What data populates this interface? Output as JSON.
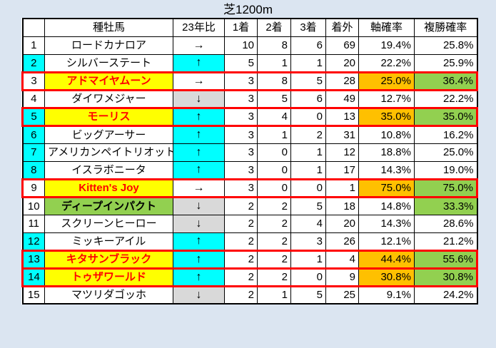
{
  "title": "芝1200m",
  "colors": {
    "page_bg": "#dbe5f1",
    "cyan": "#00ffff",
    "yellow": "#ffff00",
    "green": "#92d050",
    "gray": "#d9d9d9",
    "orange": "#ffc000",
    "red_highlight": "#ff0000",
    "grid": "#000000"
  },
  "table": {
    "headers": [
      "",
      "種牡馬",
      "23年比",
      "1着",
      "2着",
      "3着",
      "着外",
      "軸確率",
      "複勝確率"
    ],
    "rows": [
      {
        "rank": "1",
        "name": "ロードカナロア",
        "trend": "→",
        "win1": "10",
        "win2": "8",
        "win3": "6",
        "out": "69",
        "axis": "19.4%",
        "place": "25.8%",
        "rank_bg": "white",
        "name_bg": "white",
        "name_style": "normal",
        "trend_bg": "white",
        "axis_bg": "white",
        "place_bg": "white",
        "highlight": false
      },
      {
        "rank": "2",
        "name": "シルバーステート",
        "trend": "↑",
        "win1": "5",
        "win2": "1",
        "win3": "1",
        "out": "20",
        "axis": "22.2%",
        "place": "25.9%",
        "rank_bg": "cyan",
        "name_bg": "white",
        "name_style": "normal",
        "trend_bg": "cyan",
        "axis_bg": "white",
        "place_bg": "white",
        "highlight": false
      },
      {
        "rank": "3",
        "name": "アドマイヤムーン",
        "trend": "→",
        "win1": "3",
        "win2": "8",
        "win3": "5",
        "out": "28",
        "axis": "25.0%",
        "place": "36.4%",
        "rank_bg": "white",
        "name_bg": "yellow",
        "name_style": "red-bold",
        "trend_bg": "white",
        "axis_bg": "orange",
        "place_bg": "green",
        "highlight": true
      },
      {
        "rank": "4",
        "name": "ダイワメジャー",
        "trend": "↓",
        "win1": "3",
        "win2": "5",
        "win3": "6",
        "out": "49",
        "axis": "12.7%",
        "place": "22.2%",
        "rank_bg": "white",
        "name_bg": "white",
        "name_style": "normal",
        "trend_bg": "gray",
        "axis_bg": "white",
        "place_bg": "white",
        "highlight": false
      },
      {
        "rank": "5",
        "name": "モーリス",
        "trend": "↑",
        "win1": "3",
        "win2": "4",
        "win3": "0",
        "out": "13",
        "axis": "35.0%",
        "place": "35.0%",
        "rank_bg": "cyan",
        "name_bg": "yellow",
        "name_style": "red-bold",
        "trend_bg": "cyan",
        "axis_bg": "orange",
        "place_bg": "green",
        "highlight": true
      },
      {
        "rank": "6",
        "name": "ビッグアーサー",
        "trend": "↑",
        "win1": "3",
        "win2": "1",
        "win3": "2",
        "out": "31",
        "axis": "10.8%",
        "place": "16.2%",
        "rank_bg": "cyan",
        "name_bg": "white",
        "name_style": "normal",
        "trend_bg": "cyan",
        "axis_bg": "white",
        "place_bg": "white",
        "highlight": false
      },
      {
        "rank": "7",
        "name": "アメリカンペイトリオット",
        "trend": "↑",
        "win1": "3",
        "win2": "0",
        "win3": "1",
        "out": "12",
        "axis": "18.8%",
        "place": "25.0%",
        "rank_bg": "cyan",
        "name_bg": "white",
        "name_style": "normal",
        "trend_bg": "cyan",
        "axis_bg": "white",
        "place_bg": "white",
        "highlight": false
      },
      {
        "rank": "8",
        "name": "イスラボニータ",
        "trend": "↑",
        "win1": "3",
        "win2": "0",
        "win3": "1",
        "out": "17",
        "axis": "14.3%",
        "place": "19.0%",
        "rank_bg": "cyan",
        "name_bg": "white",
        "name_style": "normal",
        "trend_bg": "cyan",
        "axis_bg": "white",
        "place_bg": "white",
        "highlight": false
      },
      {
        "rank": "9",
        "name": "Kitten's Joy",
        "trend": "→",
        "win1": "3",
        "win2": "0",
        "win3": "0",
        "out": "1",
        "axis": "75.0%",
        "place": "75.0%",
        "rank_bg": "white",
        "name_bg": "yellow",
        "name_style": "red-bold",
        "trend_bg": "white",
        "axis_bg": "orange",
        "place_bg": "green",
        "highlight": true
      },
      {
        "rank": "10",
        "name": "ディープインパクト",
        "trend": "↓",
        "win1": "2",
        "win2": "2",
        "win3": "5",
        "out": "18",
        "axis": "14.8%",
        "place": "33.3%",
        "rank_bg": "white",
        "name_bg": "green",
        "name_style": "bold",
        "trend_bg": "gray",
        "axis_bg": "white",
        "place_bg": "green",
        "highlight": false
      },
      {
        "rank": "11",
        "name": "スクリーンヒーロー",
        "trend": "↓",
        "win1": "2",
        "win2": "2",
        "win3": "4",
        "out": "20",
        "axis": "14.3%",
        "place": "28.6%",
        "rank_bg": "white",
        "name_bg": "white",
        "name_style": "normal",
        "trend_bg": "gray",
        "axis_bg": "white",
        "place_bg": "white",
        "highlight": false
      },
      {
        "rank": "12",
        "name": "ミッキーアイル",
        "trend": "↑",
        "win1": "2",
        "win2": "2",
        "win3": "3",
        "out": "26",
        "axis": "12.1%",
        "place": "21.2%",
        "rank_bg": "cyan",
        "name_bg": "white",
        "name_style": "normal",
        "trend_bg": "cyan",
        "axis_bg": "white",
        "place_bg": "white",
        "highlight": false
      },
      {
        "rank": "13",
        "name": "キタサンブラック",
        "trend": "↑",
        "win1": "2",
        "win2": "2",
        "win3": "1",
        "out": "4",
        "axis": "44.4%",
        "place": "55.6%",
        "rank_bg": "cyan",
        "name_bg": "yellow",
        "name_style": "red-bold",
        "trend_bg": "cyan",
        "axis_bg": "orange",
        "place_bg": "green",
        "highlight": true
      },
      {
        "rank": "14",
        "name": "トゥザワールド",
        "trend": "↑",
        "win1": "2",
        "win2": "2",
        "win3": "0",
        "out": "9",
        "axis": "30.8%",
        "place": "30.8%",
        "rank_bg": "cyan",
        "name_bg": "yellow",
        "name_style": "red-bold",
        "trend_bg": "cyan",
        "axis_bg": "orange",
        "place_bg": "green",
        "highlight": true
      },
      {
        "rank": "15",
        "name": "マツリダゴッホ",
        "trend": "↓",
        "win1": "2",
        "win2": "1",
        "win3": "5",
        "out": "25",
        "axis": "9.1%",
        "place": "24.2%",
        "rank_bg": "white",
        "name_bg": "white",
        "name_style": "normal",
        "trend_bg": "gray",
        "axis_bg": "white",
        "place_bg": "white",
        "highlight": false
      }
    ]
  },
  "chart_data": {
    "type": "table",
    "title": "芝1200m",
    "columns": [
      "",
      "種牡馬",
      "23年比",
      "1着",
      "2着",
      "3着",
      "着外",
      "軸確率",
      "複勝確率"
    ],
    "rows": [
      [
        1,
        "ロードカナロア",
        "→",
        10,
        8,
        6,
        69,
        "19.4%",
        "25.8%"
      ],
      [
        2,
        "シルバーステート",
        "↑",
        5,
        1,
        1,
        20,
        "22.2%",
        "25.9%"
      ],
      [
        3,
        "アドマイヤムーン",
        "→",
        3,
        8,
        5,
        28,
        "25.0%",
        "36.4%"
      ],
      [
        4,
        "ダイワメジャー",
        "↓",
        3,
        5,
        6,
        49,
        "12.7%",
        "22.2%"
      ],
      [
        5,
        "モーリス",
        "↑",
        3,
        4,
        0,
        13,
        "35.0%",
        "35.0%"
      ],
      [
        6,
        "ビッグアーサー",
        "↑",
        3,
        1,
        2,
        31,
        "10.8%",
        "16.2%"
      ],
      [
        7,
        "アメリカンペイトリオット",
        "↑",
        3,
        0,
        1,
        12,
        "18.8%",
        "25.0%"
      ],
      [
        8,
        "イスラボニータ",
        "↑",
        3,
        0,
        1,
        17,
        "14.3%",
        "19.0%"
      ],
      [
        9,
        "Kitten's Joy",
        "→",
        3,
        0,
        0,
        1,
        "75.0%",
        "75.0%"
      ],
      [
        10,
        "ディープインパクト",
        "↓",
        2,
        2,
        5,
        18,
        "14.8%",
        "33.3%"
      ],
      [
        11,
        "スクリーンヒーロー",
        "↓",
        2,
        2,
        4,
        20,
        "14.3%",
        "28.6%"
      ],
      [
        12,
        "ミッキーアイル",
        "↑",
        2,
        2,
        3,
        26,
        "12.1%",
        "21.2%"
      ],
      [
        13,
        "キタサンブラック",
        "↑",
        2,
        2,
        1,
        4,
        "44.4%",
        "55.6%"
      ],
      [
        14,
        "トゥザワールド",
        "↑",
        2,
        2,
        0,
        9,
        "30.8%",
        "30.8%"
      ],
      [
        15,
        "マツリダゴッホ",
        "↓",
        2,
        1,
        5,
        25,
        "9.1%",
        "24.2%"
      ]
    ],
    "highlighted_rows_red_border": [
      3,
      5,
      9,
      13,
      14
    ],
    "legend_hints": {
      "cyan_cells": "23年比が上昇(↑)の行の順位・矢印セル",
      "gray_cells": "23年比が下降(↓)の矢印セル",
      "yellow_name": "注目種牡馬(赤太字)",
      "green_name": "注目種牡馬(黒太字)",
      "orange_axis": "高い軸確率",
      "green_place": "高い複勝確率"
    }
  }
}
